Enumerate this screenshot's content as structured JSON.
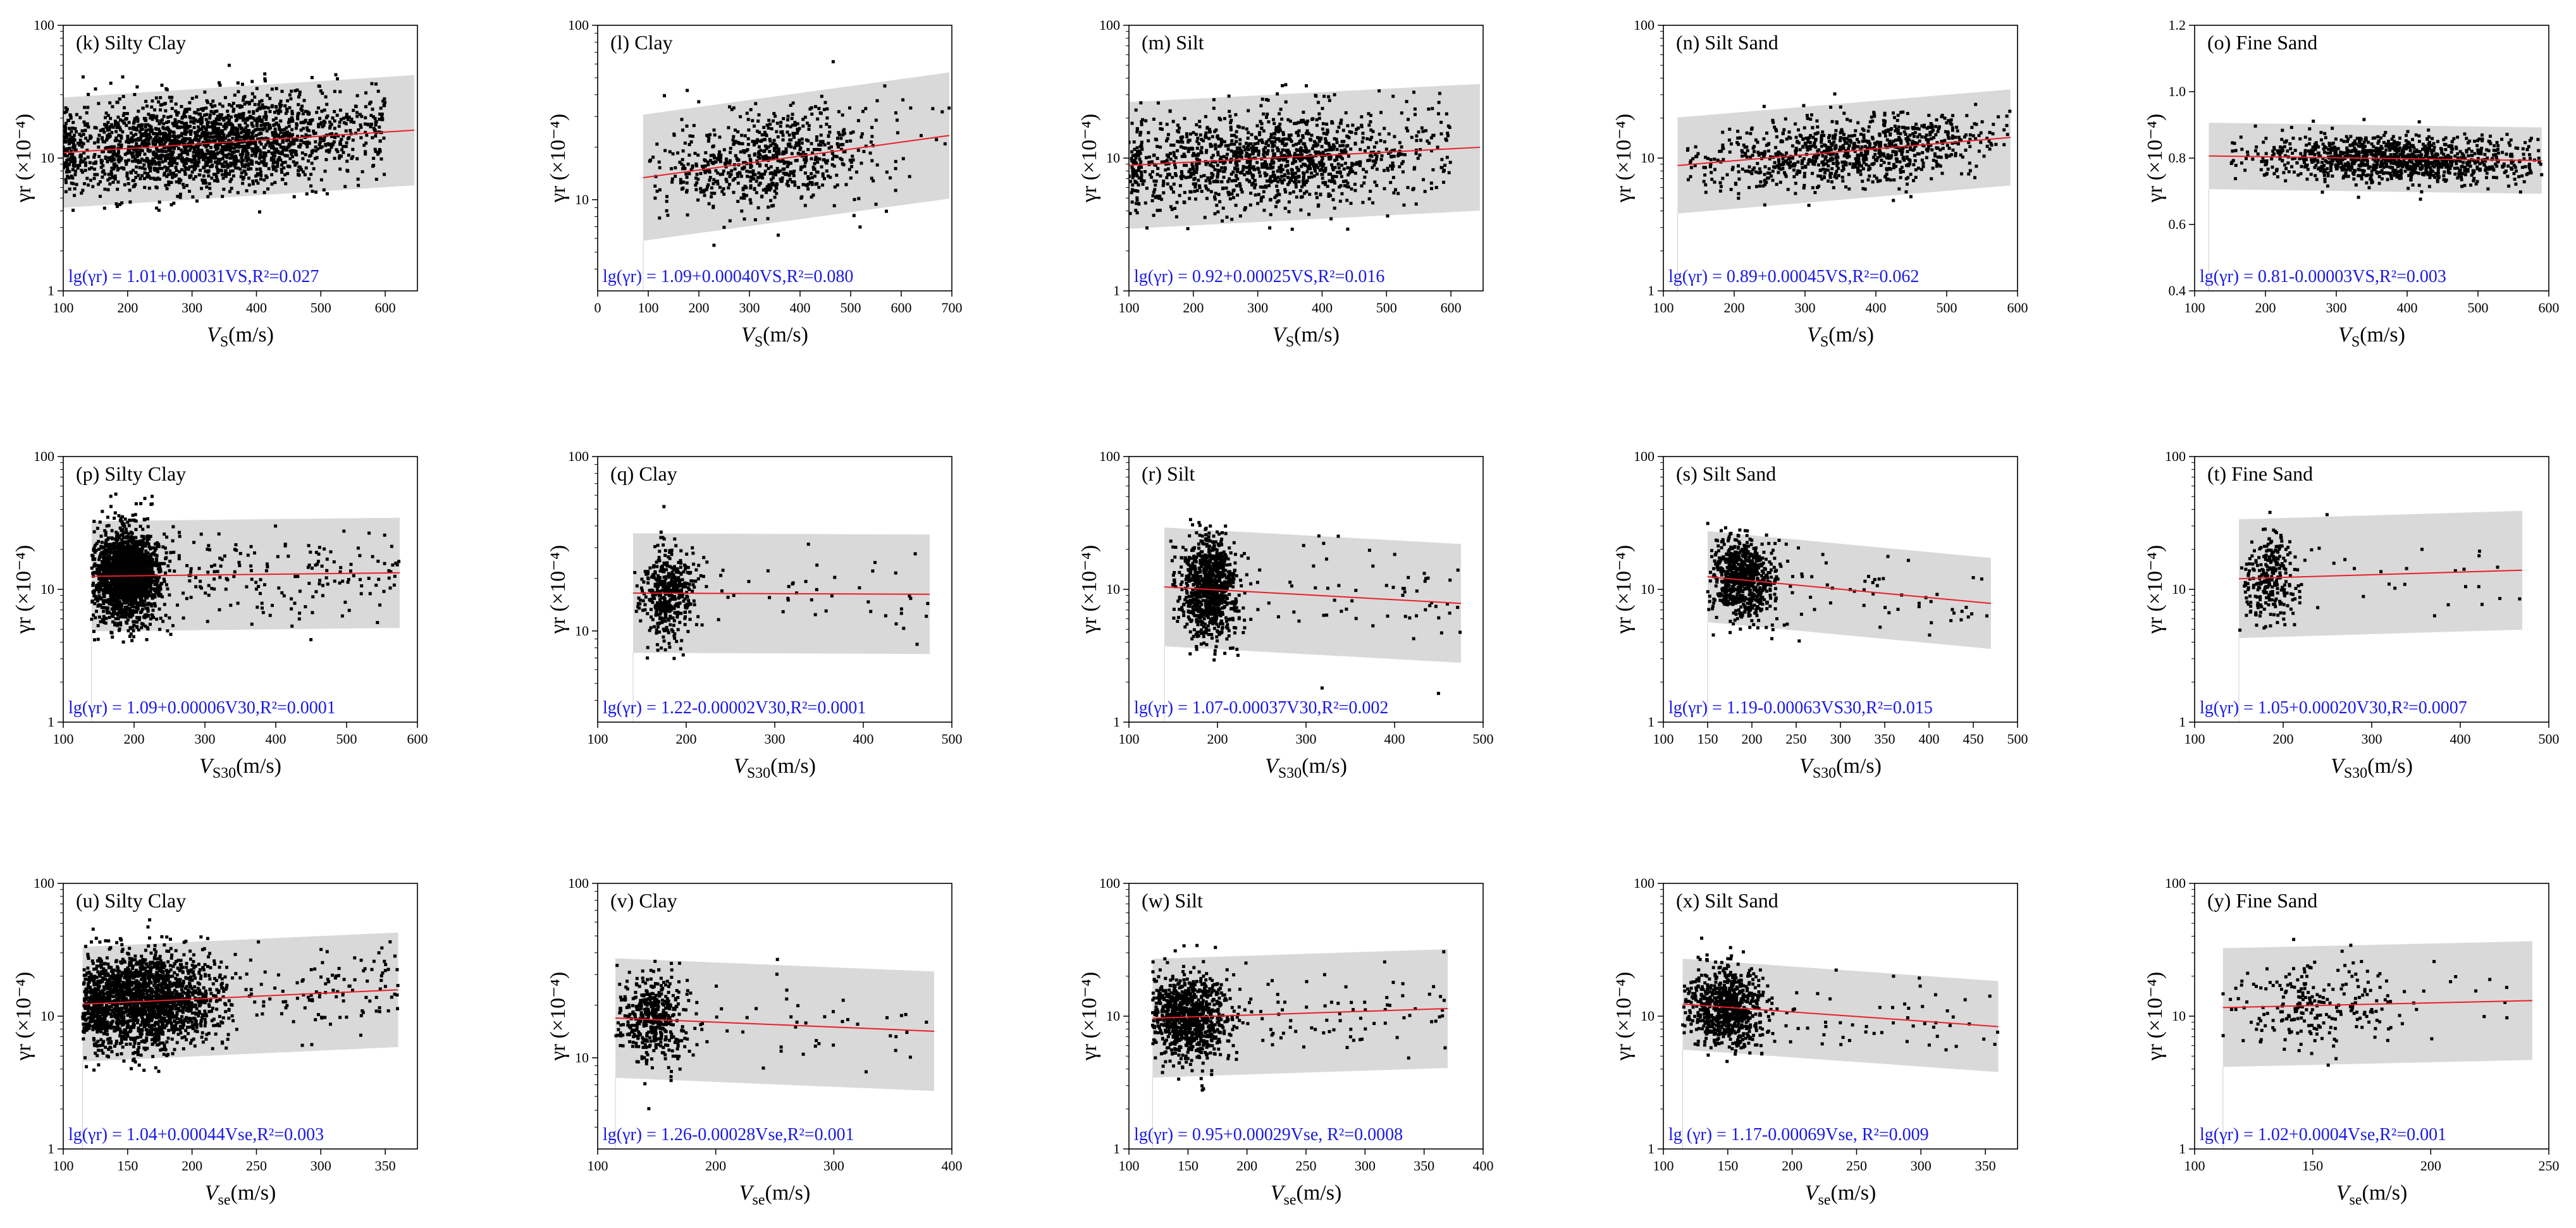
{
  "colors": {
    "band": "#d9d9d9",
    "points": "#000000",
    "fit": "#e8202a",
    "equation": "#1a1ae6",
    "axis": "#000000"
  },
  "chart_data": [
    {
      "type": "scatter",
      "panel": "(k)",
      "soil": "Silty Clay",
      "title": "(k) Silty Clay",
      "xvar": "VS",
      "xlabel": "V_S(m/s)",
      "ylabel": "γr (×10⁻⁴)",
      "yscale": "log",
      "xlim": [
        100,
        650
      ],
      "ylim": [
        1,
        100
      ],
      "xticks": [
        100,
        200,
        300,
        400,
        500,
        600
      ],
      "yticks": [
        1,
        10,
        100
      ],
      "fit": {
        "a": 1.01,
        "b": 0.00031
      },
      "band_factor": 2.6,
      "xrange": [
        100,
        645
      ],
      "equation": "lg(γr) = 1.01+0.00031VS,R²=0.027",
      "n_points": 2200,
      "x_cluster": {
        "mean": 320,
        "sd": 120,
        "min": 100,
        "max": 600
      },
      "scatter_sd": 0.17
    },
    {
      "type": "scatter",
      "panel": "(l)",
      "soil": "Clay",
      "title": "(l) Clay",
      "xvar": "VS",
      "xlabel": "V_S(m/s)",
      "ylabel": "γr (×10⁻⁴)",
      "yscale": "log",
      "xlim": [
        0,
        700
      ],
      "ylim": [
        3,
        100
      ],
      "xticks": [
        0,
        100,
        200,
        300,
        400,
        500,
        600,
        700
      ],
      "yticks": [
        10,
        100
      ],
      "fit": {
        "a": 1.09,
        "b": 0.0004
      },
      "band_factor": 2.3,
      "xrange": [
        90,
        695
      ],
      "equation": "lg(γr) = 1.09+0.00040VS,R²=0.080",
      "n_points": 700,
      "x_cluster": {
        "mean": 340,
        "sd": 100,
        "min": 100,
        "max": 700
      },
      "scatter_sd": 0.14
    },
    {
      "type": "scatter",
      "panel": "(m)",
      "soil": "Silt",
      "title": "(m) Silt",
      "xvar": "VS",
      "xlabel": "V_S(m/s)",
      "ylabel": "γr (×10⁻⁴)",
      "yscale": "log",
      "xlim": [
        100,
        650
      ],
      "ylim": [
        1,
        100
      ],
      "xticks": [
        100,
        200,
        300,
        400,
        500,
        600
      ],
      "yticks": [
        1,
        10,
        100
      ],
      "fit": {
        "a": 0.92,
        "b": 0.00025
      },
      "band_factor": 3.0,
      "xrange": [
        100,
        645
      ],
      "equation": "lg(γr) = 0.92+0.00025VS,R²=0.016",
      "n_points": 1300,
      "x_cluster": {
        "mean": 310,
        "sd": 120,
        "min": 100,
        "max": 600
      },
      "scatter_sd": 0.18
    },
    {
      "type": "scatter",
      "panel": "(n)",
      "soil": "Silt Sand",
      "title": "(n) Silt Sand",
      "xvar": "VS",
      "xlabel": "V_S(m/s)",
      "ylabel": "γr (×10⁻⁴)",
      "yscale": "log",
      "xlim": [
        100,
        600
      ],
      "ylim": [
        1,
        100
      ],
      "xticks": [
        100,
        200,
        300,
        400,
        500,
        600
      ],
      "yticks": [
        1,
        10,
        100
      ],
      "fit": {
        "a": 0.89,
        "b": 0.00045
      },
      "band_factor": 2.3,
      "xrange": [
        120,
        590
      ],
      "equation": "lg(γr) = 0.89+0.00045VS,R²=0.062",
      "n_points": 900,
      "x_cluster": {
        "mean": 360,
        "sd": 100,
        "min": 130,
        "max": 590
      },
      "scatter_sd": 0.13
    },
    {
      "type": "scatter",
      "panel": "(o)",
      "soil": "Fine Sand",
      "title": "(o) Fine Sand",
      "xvar": "VS",
      "xlabel": "V_S(m/s)",
      "ylabel": "γr (×10⁻⁴)",
      "yscale": "linear",
      "xlim": [
        100,
        600
      ],
      "ylim": [
        0.4,
        1.2
      ],
      "xticks": [
        100,
        200,
        300,
        400,
        500,
        600
      ],
      "yticks": [
        0.4,
        0.6,
        0.8,
        1.0,
        1.2
      ],
      "ytick_labels": [
        "0.4",
        "0.6",
        "0.8",
        "1.0",
        "1.2"
      ],
      "fit": {
        "a": 0.81,
        "b": -3e-05,
        "linear": true
      },
      "band_halfwidth": 0.1,
      "xrange": [
        120,
        590
      ],
      "equation": "lg(γr) = 0.81-0.00003VS,R²=0.003",
      "n_points": 1100,
      "x_cluster": {
        "mean": 380,
        "sd": 90,
        "min": 150,
        "max": 590
      },
      "scatter_sd": 0.035
    },
    {
      "type": "scatter",
      "panel": "(p)",
      "soil": "Silty Clay",
      "title": "(p) Silty Clay",
      "xvar": "VS30",
      "xlabel": "V_S30(m/s)",
      "ylabel": "γr (×10⁻⁴)",
      "yscale": "log",
      "xlim": [
        100,
        600
      ],
      "ylim": [
        1,
        100
      ],
      "xticks": [
        100,
        200,
        300,
        400,
        500,
        600
      ],
      "yticks": [
        1,
        10,
        100
      ],
      "fit": {
        "a": 1.09,
        "b": 6e-05
      },
      "band_factor": 2.6,
      "xrange": [
        140,
        575
      ],
      "equation": "lg(γr) = 1.09+0.00006V30,R²=0.0001",
      "n_points": 2200,
      "x_cluster": {
        "mean": 190,
        "sd": 22,
        "min": 140,
        "max": 575
      },
      "scatter_sd": 0.17
    },
    {
      "type": "scatter",
      "panel": "(q)",
      "soil": "Clay",
      "title": "(q) Clay",
      "xvar": "VS30",
      "xlabel": "V_S30(m/s)",
      "ylabel": "γr (×10⁻⁴)",
      "yscale": "log",
      "xlim": [
        100,
        500
      ],
      "ylim": [
        3,
        100
      ],
      "xticks": [
        100,
        200,
        300,
        400,
        500
      ],
      "yticks": [
        10,
        100
      ],
      "fit": {
        "a": 1.22,
        "b": -2e-05
      },
      "band_factor": 2.2,
      "xrange": [
        140,
        475
      ],
      "equation": "lg(γr) = 1.22-0.00002V30,R²=0.0001",
      "n_points": 500,
      "x_cluster": {
        "mean": 180,
        "sd": 15,
        "min": 140,
        "max": 475
      },
      "scatter_sd": 0.13
    },
    {
      "type": "scatter",
      "panel": "(r)",
      "soil": "Silt",
      "title": "(r) Silt",
      "xvar": "VS30",
      "xlabel": "V_S30(m/s)",
      "ylabel": "γr (×10⁻⁴)",
      "yscale": "log",
      "xlim": [
        100,
        500
      ],
      "ylim": [
        1,
        100
      ],
      "xticks": [
        100,
        200,
        300,
        400,
        500
      ],
      "yticks": [
        1,
        10,
        100
      ],
      "fit": {
        "a": 1.07,
        "b": -0.00037
      },
      "band_factor": 2.8,
      "xrange": [
        140,
        475
      ],
      "equation": "lg(γr) = 1.07-0.00037V30,R²=0.002",
      "n_points": 1000,
      "x_cluster": {
        "mean": 190,
        "sd": 15,
        "min": 140,
        "max": 475
      },
      "scatter_sd": 0.18
    },
    {
      "type": "scatter",
      "panel": "(s)",
      "soil": "Silt Sand",
      "title": "(s) Silt Sand",
      "xvar": "VS30",
      "xlabel": "V_S30(m/s)",
      "ylabel": "γr (×10⁻⁴)",
      "yscale": "log",
      "xlim": [
        100,
        500
      ],
      "ylim": [
        1,
        100
      ],
      "xticks": [
        100,
        150,
        200,
        250,
        300,
        350,
        400,
        450,
        500
      ],
      "yticks": [
        1,
        10,
        100
      ],
      "fit": {
        "a": 1.19,
        "b": -0.00063
      },
      "band_factor": 2.2,
      "xrange": [
        150,
        470
      ],
      "equation": "lg(γr) = 1.19-0.00063VS30,R²=0.015",
      "n_points": 800,
      "x_cluster": {
        "mean": 190,
        "sd": 18,
        "min": 150,
        "max": 470
      },
      "scatter_sd": 0.15
    },
    {
      "type": "scatter",
      "panel": "(t)",
      "soil": "Fine Sand",
      "title": "(t) Fine Sand",
      "xvar": "VS30",
      "xlabel": "V_S30(m/s)",
      "ylabel": "γr (×10⁻⁴)",
      "yscale": "log",
      "xlim": [
        100,
        500
      ],
      "ylim": [
        1,
        100
      ],
      "xticks": [
        100,
        200,
        300,
        400,
        500
      ],
      "yticks": [
        1,
        10,
        100
      ],
      "fit": {
        "a": 1.05,
        "b": 0.0002
      },
      "band_factor": 2.8,
      "xrange": [
        150,
        470
      ],
      "equation": "lg(γr) = 1.05+0.00020V30,R²=0.0007",
      "n_points": 300,
      "x_cluster": {
        "mean": 185,
        "sd": 15,
        "min": 150,
        "max": 470
      },
      "scatter_sd": 0.16
    },
    {
      "type": "scatter",
      "panel": "(u)",
      "soil": "Silty Clay",
      "title": "(u) Silty Clay",
      "xvar": "Vse",
      "xlabel": "V_se(m/s)",
      "ylabel": "γr (×10⁻⁴)",
      "yscale": "log",
      "xlim": [
        100,
        375
      ],
      "ylim": [
        1,
        100
      ],
      "xticks": [
        100,
        150,
        200,
        250,
        300,
        350
      ],
      "yticks": [
        1,
        10,
        100
      ],
      "fit": {
        "a": 1.04,
        "b": 0.00044
      },
      "band_factor": 2.7,
      "xrange": [
        115,
        360
      ],
      "equation": "lg(γr) = 1.04+0.00044Vse,R²=0.003",
      "n_points": 2200,
      "x_cluster": {
        "mean": 160,
        "sd": 28,
        "min": 115,
        "max": 360
      },
      "scatter_sd": 0.17
    },
    {
      "type": "scatter",
      "panel": "(v)",
      "soil": "Clay",
      "title": "(v) Clay",
      "xvar": "Vse",
      "xlabel": "V_se(m/s)",
      "ylabel": "γr (×10⁻⁴)",
      "yscale": "log",
      "xlim": [
        100,
        400
      ],
      "ylim": [
        3,
        100
      ],
      "xticks": [
        100,
        200,
        300,
        400
      ],
      "yticks": [
        10,
        100
      ],
      "fit": {
        "a": 1.26,
        "b": -0.00028
      },
      "band_factor": 2.2,
      "xrange": [
        115,
        385
      ],
      "equation": "lg(γr) = 1.26-0.00028Vse,R²=0.001",
      "n_points": 500,
      "x_cluster": {
        "mean": 148,
        "sd": 14,
        "min": 115,
        "max": 385
      },
      "scatter_sd": 0.13
    },
    {
      "type": "scatter",
      "panel": "(w)",
      "soil": "Silt",
      "title": "(w) Silt",
      "xvar": "Vse",
      "xlabel": "V_se(m/s)",
      "ylabel": "γr (×10⁻⁴)",
      "yscale": "log",
      "xlim": [
        100,
        400
      ],
      "ylim": [
        1,
        100
      ],
      "xticks": [
        100,
        150,
        200,
        250,
        300,
        350,
        400
      ],
      "yticks": [
        1,
        10,
        100
      ],
      "fit": {
        "a": 0.95,
        "b": 0.00029
      },
      "band_factor": 2.8,
      "xrange": [
        120,
        370
      ],
      "equation": "lg(γr) = 0.95+0.00029Vse, R²=0.0008",
      "n_points": 1000,
      "x_cluster": {
        "mean": 150,
        "sd": 18,
        "min": 120,
        "max": 370
      },
      "scatter_sd": 0.17
    },
    {
      "type": "scatter",
      "panel": "(x)",
      "soil": "Silt Sand",
      "title": "(x) Silt Sand",
      "xvar": "Vse",
      "xlabel": "V_se(m/s)",
      "ylabel": "γr (×10⁻⁴)",
      "yscale": "log",
      "xlim": [
        100,
        375
      ],
      "ylim": [
        1,
        100
      ],
      "xticks": [
        100,
        150,
        200,
        250,
        300,
        350
      ],
      "yticks": [
        1,
        10,
        100
      ],
      "fit": {
        "a": 1.17,
        "b": -0.00069
      },
      "band_factor": 2.2,
      "xrange": [
        115,
        360
      ],
      "equation": "lg (γr) = 1.17-0.00069Vse, R²=0.009",
      "n_points": 800,
      "x_cluster": {
        "mean": 148,
        "sd": 15,
        "min": 115,
        "max": 360
      },
      "scatter_sd": 0.15
    },
    {
      "type": "scatter",
      "panel": "(y)",
      "soil": "Fine Sand",
      "title": "(y) Fine Sand",
      "xvar": "Vse",
      "xlabel": "V_se(m/s)",
      "ylabel": "γr (×10⁻⁴)",
      "yscale": "log",
      "xlim": [
        100,
        250
      ],
      "ylim": [
        1,
        100
      ],
      "xticks": [
        100,
        150,
        200,
        250
      ],
      "yticks": [
        1,
        10,
        100
      ],
      "fit": {
        "a": 1.02,
        "b": 0.0004
      },
      "band_factor": 2.8,
      "xrange": [
        112,
        243
      ],
      "equation": "lg(γr) = 1.02+0.0004Vse,R²=0.001",
      "n_points": 250,
      "x_cluster": {
        "mean": 150,
        "sd": 18,
        "min": 112,
        "max": 243
      },
      "scatter_sd": 0.16
    }
  ]
}
